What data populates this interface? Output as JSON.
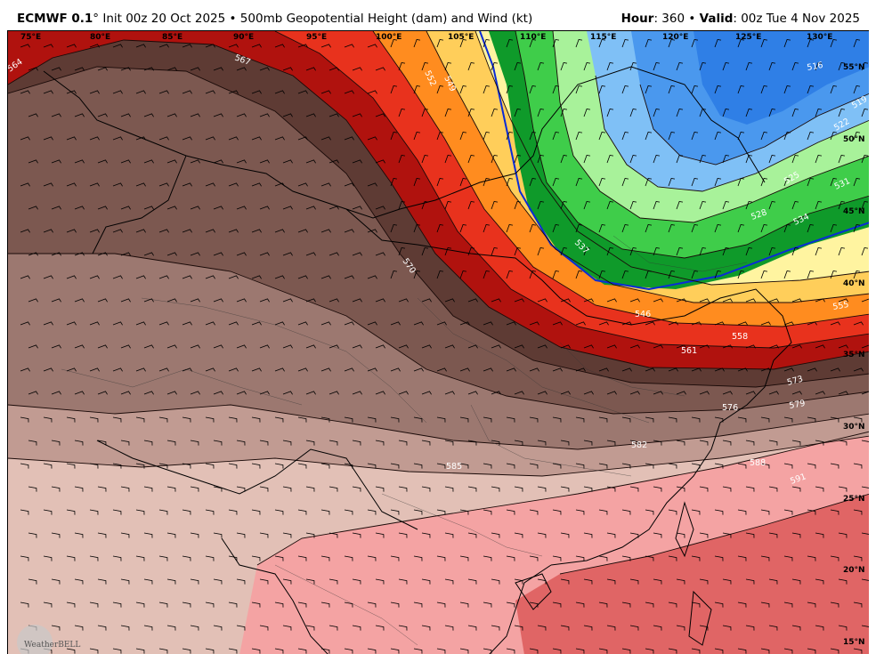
{
  "header": {
    "model": "ECMWF 0.1",
    "degree": "°",
    "init": "Init 00z 20 Oct 2025",
    "product": "500mb Geopotential Height (dam) and Wind (kt)",
    "hour_label": "Hour",
    "hour_value": ": 360",
    "valid_label": "Valid",
    "valid_value": ": 00z Tue 4 Nov 2025",
    "separator": "•"
  },
  "map": {
    "longitude_labels": [
      "75°E",
      "80°E",
      "85°E",
      "90°E",
      "95°E",
      "100°E",
      "105°E",
      "110°E",
      "115°E",
      "120°E",
      "125°E",
      "130°E"
    ],
    "latitude_labels": [
      "55°N",
      "50°N",
      "45°N",
      "40°N",
      "35°N",
      "30°N",
      "25°N",
      "20°N",
      "15°N"
    ],
    "contour_labels": [
      "564",
      "567",
      "570",
      "549",
      "552",
      "516",
      "519",
      "522",
      "525",
      "528",
      "531",
      "534",
      "537",
      "546",
      "555",
      "558",
      "561",
      "573",
      "576",
      "579",
      "582",
      "585",
      "588",
      "591"
    ],
    "colors": {
      "blue_deep": "#2f7fe6",
      "blue": "#4a98ee",
      "blue_light": "#7fc0f6",
      "green_dark": "#0f9a2a",
      "green": "#3fcd4a",
      "green_light": "#a8f29a",
      "yellow": "#fff4a0",
      "orange_light": "#ffce5a",
      "orange": "#ff8c1f",
      "red": "#e8321d",
      "dark_red": "#b0120e",
      "brown_dark": "#5e3b34",
      "brown": "#7c5850",
      "brown_mid": "#9c7870",
      "brown_light": "#c19b92",
      "tan": "#e2c0b6",
      "pink": "#f4a3a3",
      "salmon": "#e06565"
    }
  },
  "logo": {
    "text": "WeatherBELL"
  }
}
